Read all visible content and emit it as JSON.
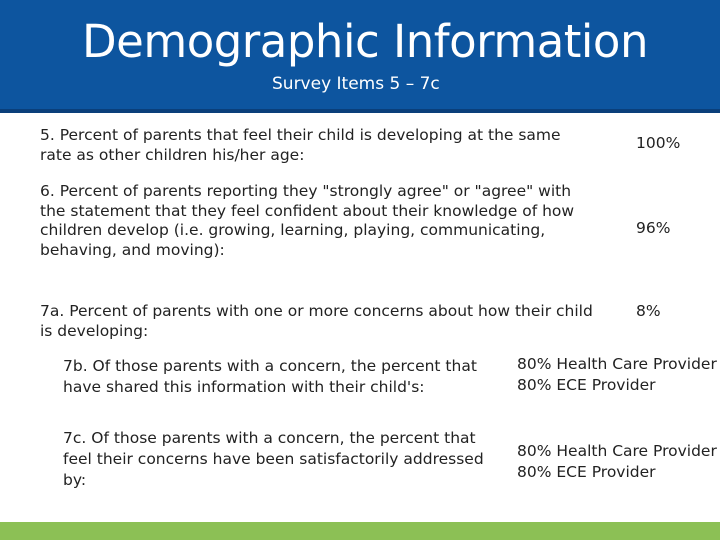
{
  "header": {
    "title": "Demographic Information",
    "subtitle": "Survey Items 5 – 7c"
  },
  "items": [
    {
      "text": "5. Percent of parents that feel their child is developing at the same rate as other children his/her age:",
      "value": "100%"
    },
    {
      "text": "6. Percent of parents reporting they \"strongly agree\" or \"agree\" with the statement that they feel confident about their knowledge of how children develop (i.e. growing, learning, playing, communicating, behaving, and moving):",
      "value": "96%"
    },
    {
      "text": "7a. Percent of parents with one or more concerns about how their child is developing:",
      "value": "8%"
    }
  ],
  "sub_items": [
    {
      "text": "7b. Of those parents with a concern, the percent that have shared this information with their child's:",
      "values": [
        "80% Health Care Provider",
        "80%  ECE Provider"
      ]
    },
    {
      "text": "7c. Of those parents with a concern, the percent that feel their concerns have been satisfactorily addressed by:",
      "values": [
        "80% Health Care Provider",
        "80%  ECE Provider"
      ]
    }
  ],
  "colors": {
    "header_bg": "#0d559f",
    "footer_bar": "#8cc055"
  }
}
